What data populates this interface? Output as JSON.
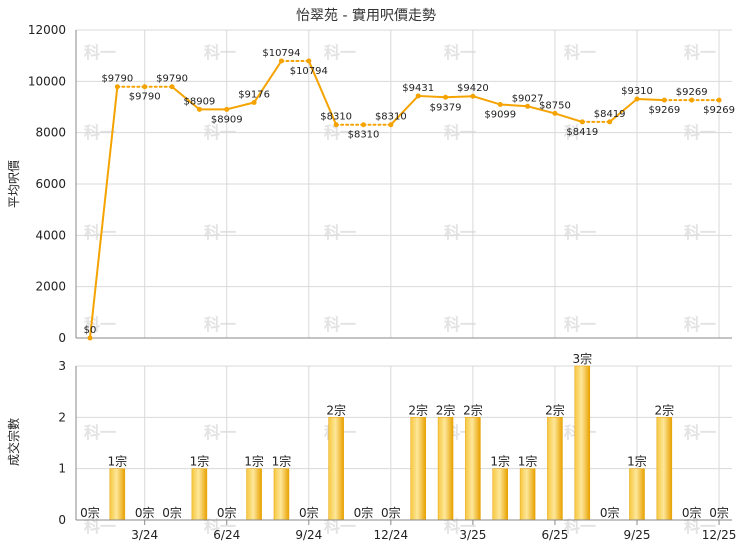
{
  "chart_data": [
    {
      "type": "line",
      "title": "怡翠苑 - 實用呎價走勢",
      "ylabel": "平均呎價",
      "ylim": [
        0,
        12000
      ],
      "yticks": [
        "0",
        "2000",
        "4000",
        "6000",
        "8000",
        "10000",
        "12000"
      ],
      "grid": true,
      "color": "#f5a300",
      "x": [
        "1/24",
        "2/24",
        "3/24",
        "4/24",
        "5/24",
        "6/24",
        "7/24",
        "8/24",
        "9/24",
        "10/24",
        "11/24",
        "12/24",
        "1/25",
        "2/25",
        "3/25",
        "4/25",
        "5/25",
        "6/25",
        "7/25",
        "8/25",
        "9/25",
        "10/25",
        "11/25",
        "12/25"
      ],
      "values": [
        0,
        9790,
        9790,
        9790,
        8909,
        8909,
        9176,
        10794,
        10794,
        8310,
        8310,
        8310,
        9431,
        9379,
        9420,
        9099,
        9027,
        8750,
        8419,
        8419,
        9310,
        9269,
        9269,
        9269
      ],
      "labels": [
        "$0",
        "$9790",
        "$9790",
        "$9790",
        "$8909",
        "$8909",
        "$9176",
        "$10794",
        "$10794",
        "$8310",
        "$8310",
        "$8310",
        "$9431",
        "$9379",
        "$9420",
        "$9099",
        "$9027",
        "$8750",
        "$8419",
        "$8419",
        "$9310",
        "$9269",
        "$9269",
        "$9269"
      ],
      "label_above": [
        true,
        true,
        false,
        true,
        true,
        false,
        true,
        true,
        false,
        true,
        false,
        true,
        true,
        false,
        true,
        false,
        true,
        true,
        false,
        true,
        true,
        false,
        true,
        false
      ],
      "dotted_after": [
        false,
        true,
        true,
        false,
        false,
        false,
        false,
        true,
        false,
        true,
        true,
        false,
        false,
        false,
        false,
        false,
        false,
        false,
        true,
        false,
        false,
        true,
        true
      ]
    },
    {
      "type": "bar",
      "ylabel": "成交宗數",
      "ylim": [
        0,
        3
      ],
      "yticks": [
        "0",
        "1",
        "2",
        "3"
      ],
      "grid": true,
      "color": "#f5b400",
      "x": [
        "1/24",
        "2/24",
        "3/24",
        "4/24",
        "5/24",
        "6/24",
        "7/24",
        "8/24",
        "9/24",
        "10/24",
        "11/24",
        "12/24",
        "1/25",
        "2/25",
        "3/25",
        "4/25",
        "5/25",
        "6/25",
        "7/25",
        "8/25",
        "9/25",
        "10/25",
        "11/25",
        "12/25"
      ],
      "values": [
        0,
        1,
        0,
        0,
        1,
        0,
        1,
        1,
        0,
        2,
        0,
        0,
        2,
        2,
        2,
        1,
        1,
        2,
        3,
        0,
        1,
        2,
        0,
        0
      ],
      "labels": [
        "0宗",
        "1宗",
        "0宗",
        "0宗",
        "1宗",
        "0宗",
        "1宗",
        "1宗",
        "0宗",
        "2宗",
        "0宗",
        "0宗",
        "2宗",
        "2宗",
        "2宗",
        "1宗",
        "1宗",
        "2宗",
        "3宗",
        "0宗",
        "1宗",
        "2宗",
        "0宗",
        "0宗"
      ]
    }
  ],
  "x_tick_labels": [
    "3/24",
    "6/24",
    "9/24",
    "12/24",
    "3/25",
    "6/25",
    "9/25",
    "12/25"
  ],
  "x_tick_months": [
    "3/24",
    "6/24",
    "9/24",
    "12/24",
    "3/25",
    "6/25",
    "9/25",
    "12/25"
  ],
  "watermark": "科一"
}
